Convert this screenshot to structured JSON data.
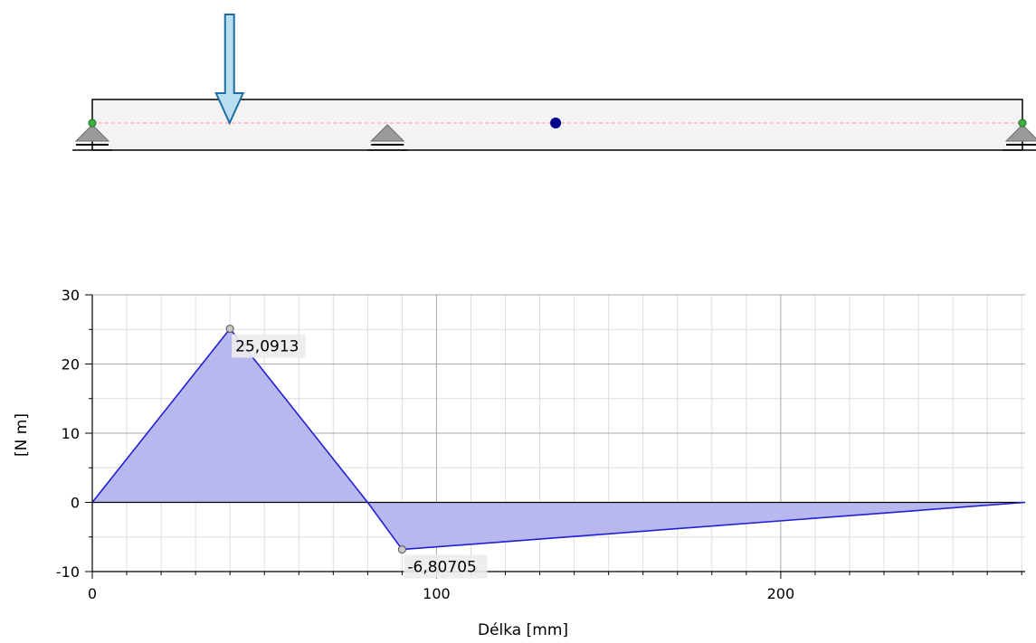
{
  "beam": {
    "length_mm": 271,
    "supports_mm": [
      0,
      86,
      271
    ],
    "load_position_mm": 40,
    "point_marker_mm": 135,
    "colors": {
      "beam_fill": "#f3f3f3",
      "beam_stroke": "#000000",
      "centerline": "#ff9999",
      "support": "#9a9a9a",
      "load_arrow": "#b9def0",
      "point_marker": "#00008b",
      "end_node": "#3cb043"
    }
  },
  "chart_data": {
    "type": "area",
    "xlabel": "Délka [mm]",
    "ylabel": "[N m]",
    "xlim": [
      0,
      271
    ],
    "ylim": [
      -10,
      30
    ],
    "x_ticks": [
      0,
      100,
      200
    ],
    "y_ticks": [
      -10,
      0,
      10,
      20,
      30
    ],
    "grid": true,
    "series": [
      {
        "x": [
          0,
          40,
          80,
          90,
          271
        ],
        "y": [
          0,
          25.0913,
          0,
          -6.80705,
          0
        ]
      }
    ],
    "annotations": [
      {
        "x": 40,
        "y": 25.0913,
        "text": "25,0913"
      },
      {
        "x": 90,
        "y": -6.80705,
        "text": "-6,80705"
      }
    ],
    "colors": {
      "line": "#2020d0",
      "positive_fill": "#b8b8ee",
      "negative_fill": "#f2b9b9",
      "grid_major": "#aaaaaa",
      "grid_minor": "#dddddd",
      "axis": "#000000"
    }
  }
}
